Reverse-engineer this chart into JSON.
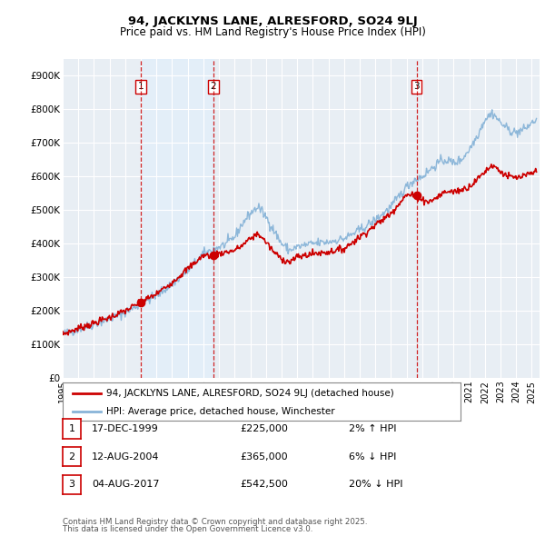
{
  "title_line1": "94, JACKLYNS LANE, ALRESFORD, SO24 9LJ",
  "title_line2": "Price paid vs. HM Land Registry's House Price Index (HPI)",
  "ylim": [
    0,
    950000
  ],
  "yticks": [
    0,
    100000,
    200000,
    300000,
    400000,
    500000,
    600000,
    700000,
    800000,
    900000
  ],
  "ytick_labels": [
    "£0",
    "£100K",
    "£200K",
    "£300K",
    "£400K",
    "£500K",
    "£600K",
    "£700K",
    "£800K",
    "£900K"
  ],
  "xlim_start": 1995.0,
  "xlim_end": 2025.5,
  "xticks": [
    1995,
    1996,
    1997,
    1998,
    1999,
    2000,
    2001,
    2002,
    2003,
    2004,
    2005,
    2006,
    2007,
    2008,
    2009,
    2010,
    2011,
    2012,
    2013,
    2014,
    2015,
    2016,
    2017,
    2018,
    2019,
    2020,
    2021,
    2022,
    2023,
    2024,
    2025
  ],
  "sale_color": "#cc0000",
  "hpi_color": "#88b4d8",
  "shade_color": "#ddeeff",
  "vline_color": "#cc0000",
  "transaction_box_color": "#cc0000",
  "background_color": "#e8eef4",
  "legend_label_sale": "94, JACKLYNS LANE, ALRESFORD, SO24 9LJ (detached house)",
  "legend_label_hpi": "HPI: Average price, detached house, Winchester",
  "transactions": [
    {
      "num": 1,
      "date": "17-DEC-1999",
      "price": 225000,
      "hpi_diff": "2% ↑ HPI",
      "year": 2000.0
    },
    {
      "num": 2,
      "date": "12-AUG-2004",
      "price": 365000,
      "hpi_diff": "6% ↓ HPI",
      "year": 2004.63
    },
    {
      "num": 3,
      "date": "04-AUG-2017",
      "price": 542500,
      "hpi_diff": "20% ↓ HPI",
      "year": 2017.63
    }
  ],
  "footnote_line1": "Contains HM Land Registry data © Crown copyright and database right 2025.",
  "footnote_line2": "This data is licensed under the Open Government Licence v3.0."
}
